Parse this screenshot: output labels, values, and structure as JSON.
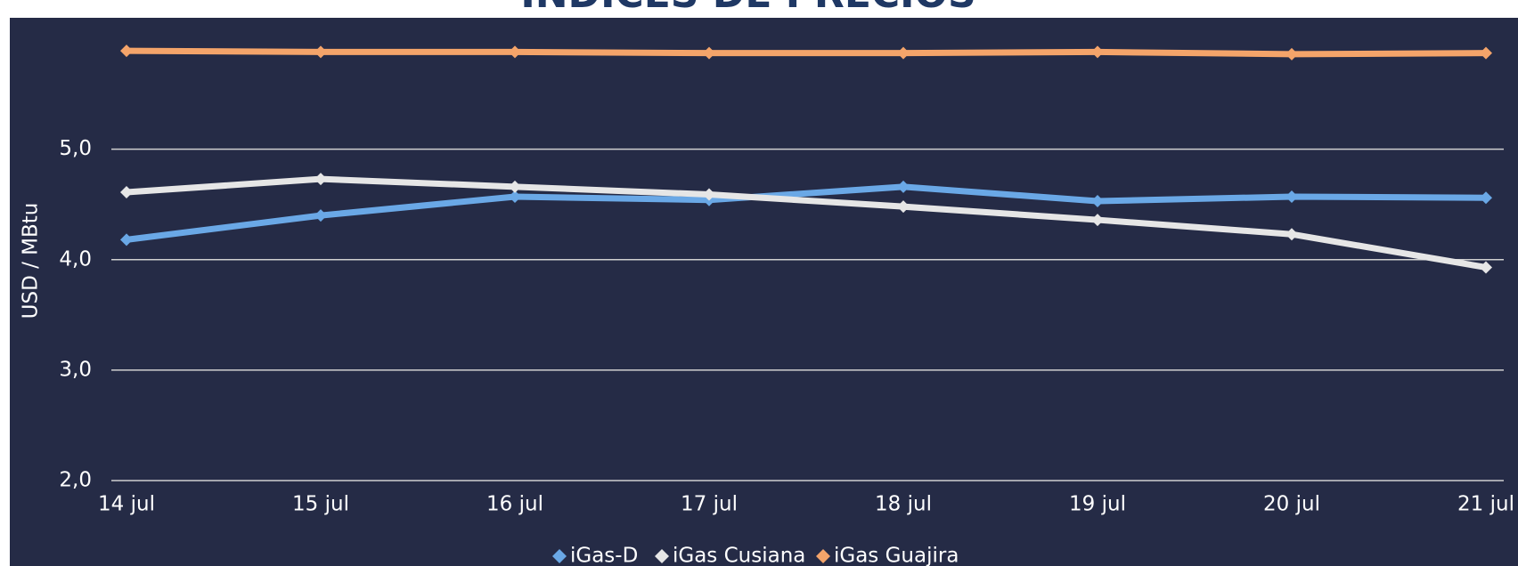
{
  "chart_data": {
    "type": "line",
    "title": "ÍNDICES DE PRECIOS",
    "y_label": "USD / MBtu",
    "x": [
      "14 jul",
      "15 jul",
      "16 jul",
      "17 jul",
      "18 jul",
      "19 jul",
      "20 jul",
      "21 jul"
    ],
    "series": [
      {
        "name": "iGas-D",
        "color": "#6aa8e6",
        "values": [
          4.18,
          4.4,
          4.57,
          4.54,
          4.66,
          4.53,
          4.57,
          4.56
        ]
      },
      {
        "name": "iGas Cusiana",
        "color": "#e6e6e6",
        "values": [
          4.61,
          4.73,
          4.66,
          4.59,
          4.48,
          4.36,
          4.23,
          3.93
        ]
      },
      {
        "name": "iGas Guajira",
        "color": "#f4a46a",
        "values": [
          5.89,
          5.88,
          5.88,
          5.87,
          5.87,
          5.88,
          5.86,
          5.87
        ]
      }
    ],
    "ylim": [
      2,
      6
    ],
    "yticks": [
      {
        "value": 2,
        "label": "2,0"
      },
      {
        "value": 3,
        "label": "3,0"
      },
      {
        "value": 4,
        "label": "4,0"
      },
      {
        "value": 5,
        "label": "5,0"
      }
    ],
    "grid": true,
    "legend": "bottom"
  }
}
